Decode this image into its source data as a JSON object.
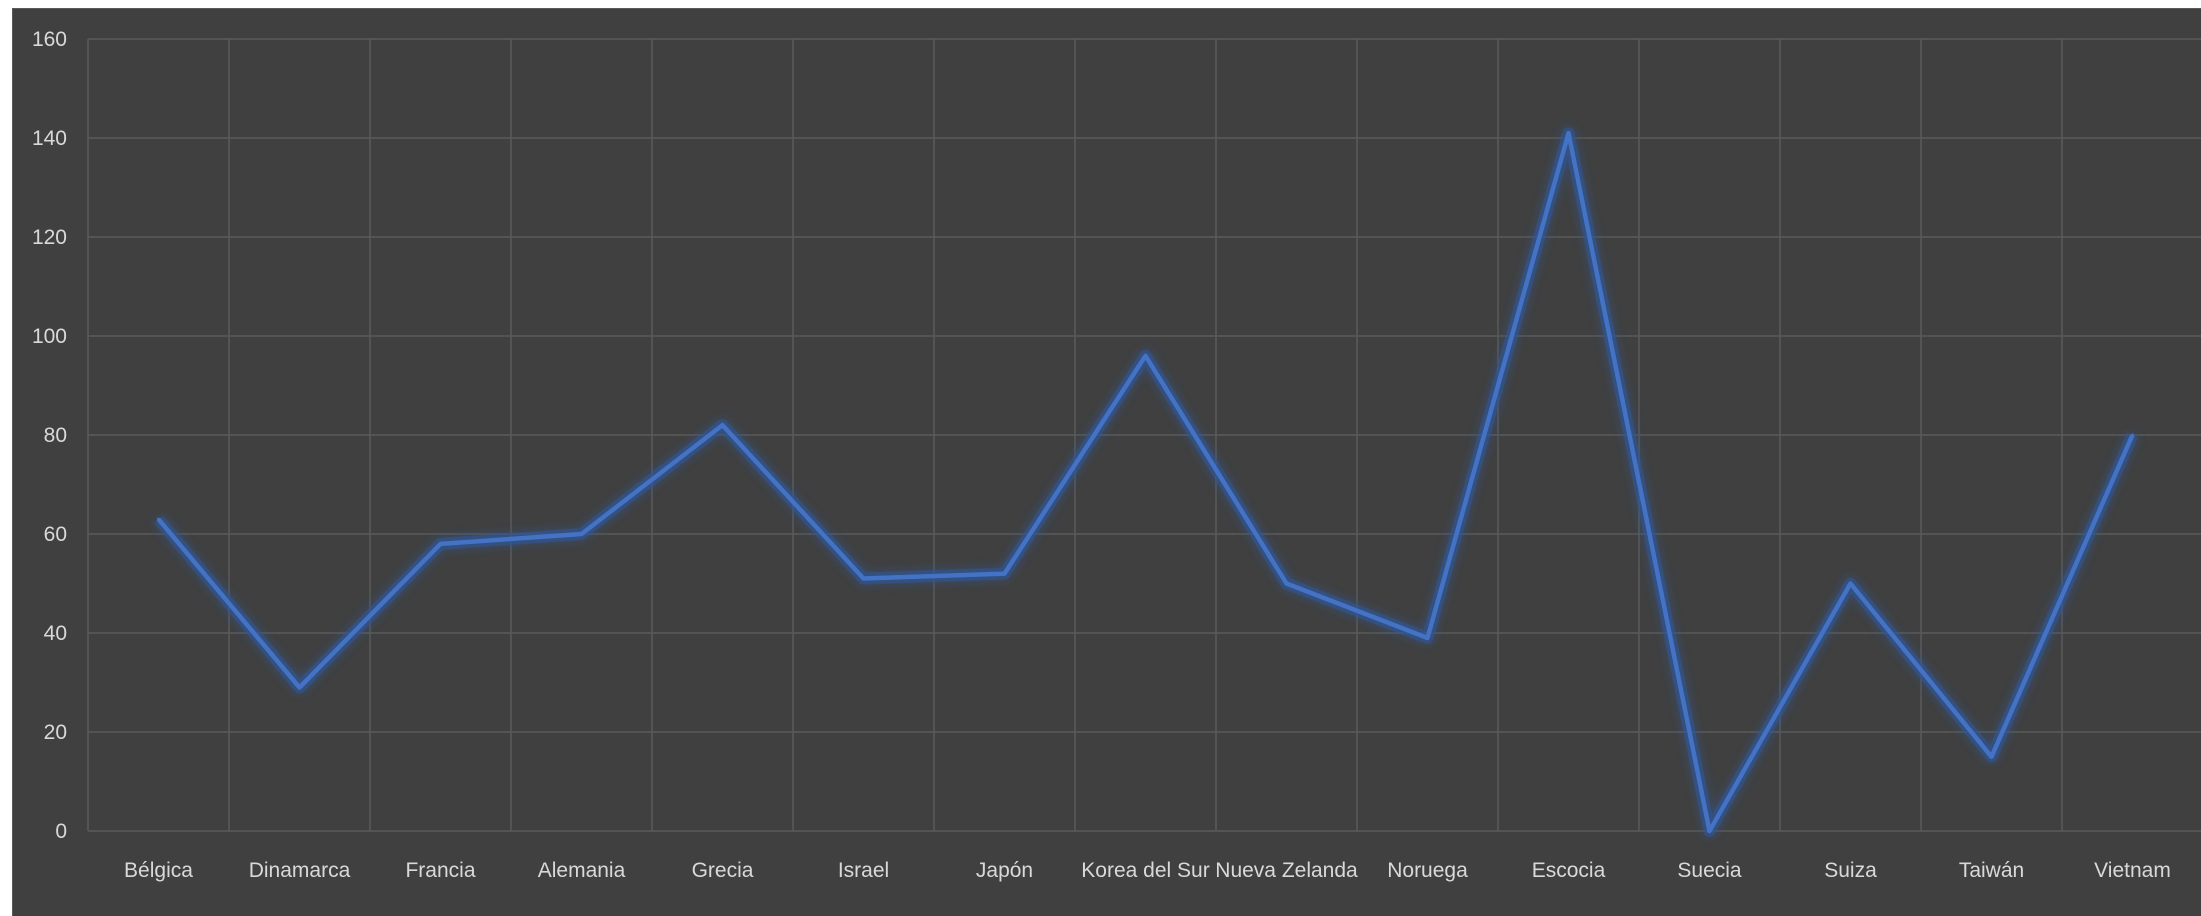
{
  "chart_data": {
    "type": "line",
    "categories": [
      "Bélgica",
      "Dinamarca",
      "Francia",
      "Alemania",
      "Grecia",
      "Israel",
      "Japón",
      "Korea del Sur",
      "Nueva Zelanda",
      "Noruega",
      "Escocia",
      "Suecia",
      "Suiza",
      "Taiwán",
      "Vietnam"
    ],
    "series": [
      {
        "values": [
          63,
          29,
          58,
          60,
          82,
          51,
          52,
          96,
          50,
          39,
          141,
          0,
          50,
          15,
          80
        ]
      }
    ],
    "y_ticks": [
      "0",
      "20",
      "40",
      "60",
      "80",
      "100",
      "120",
      "140",
      "160"
    ],
    "ylim": [
      0,
      160
    ],
    "grid": true,
    "colors": {
      "background": "#404040",
      "grid": "#5a5a5a",
      "line": "#4472c4",
      "glow": "#2f5597",
      "text": "#d9d9d9"
    }
  }
}
